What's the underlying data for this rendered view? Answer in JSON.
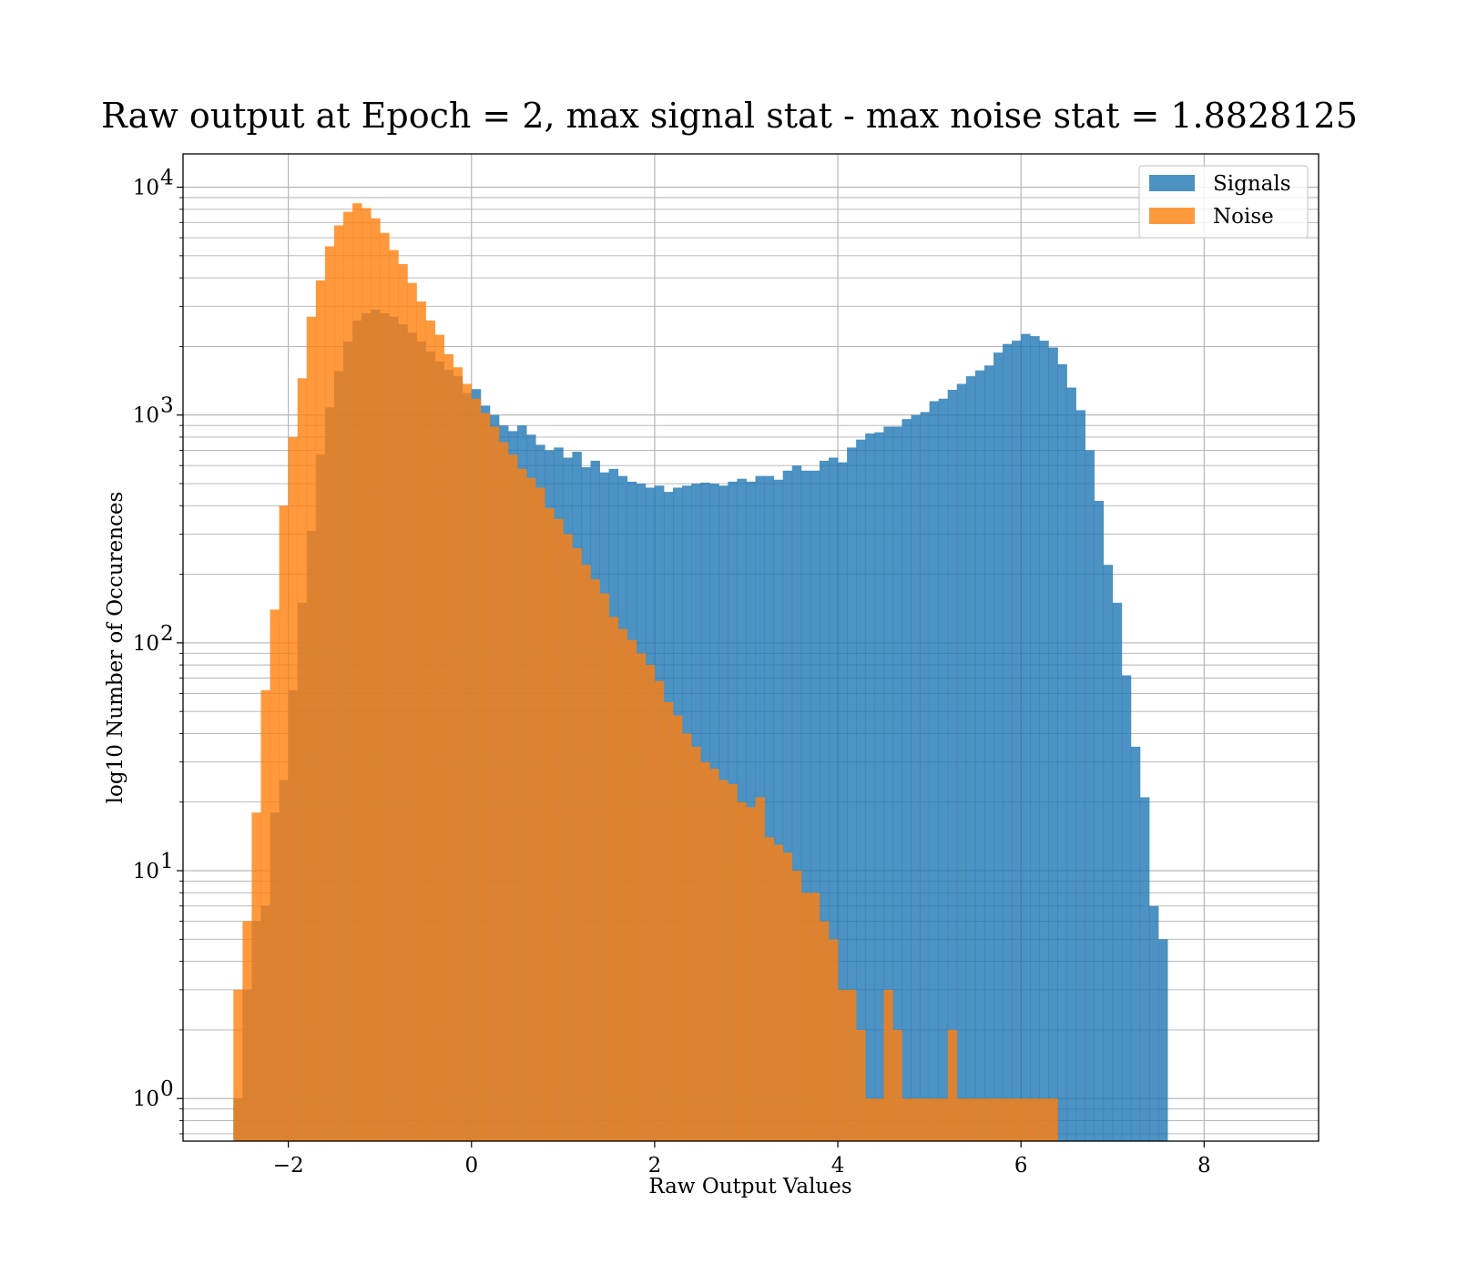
{
  "chart_data": {
    "type": "bar",
    "title": "Raw output at Epoch = 2, max signal stat - max noise stat = 1.8828125",
    "xlabel": "Raw Output Values",
    "ylabel": "log10 Number of Occurences",
    "xlim": [
      -3.15,
      9.25
    ],
    "ylim": [
      0.65,
      14000
    ],
    "yscale": "log",
    "xticks": [
      {
        "value": -2,
        "label": "−2"
      },
      {
        "value": 0,
        "label": "0"
      },
      {
        "value": 2,
        "label": "2"
      },
      {
        "value": 4,
        "label": "4"
      },
      {
        "value": 6,
        "label": "6"
      },
      {
        "value": 8,
        "label": "8"
      }
    ],
    "yticks": [
      {
        "value": 1,
        "base": "10",
        "exp": "0"
      },
      {
        "value": 10,
        "base": "10",
        "exp": "1"
      },
      {
        "value": 100,
        "base": "10",
        "exp": "2"
      },
      {
        "value": 1000,
        "base": "10",
        "exp": "3"
      },
      {
        "value": 10000,
        "base": "10",
        "exp": "4"
      }
    ],
    "grid": true,
    "legend_position": "top-right",
    "bin_width": 0.1,
    "series": [
      {
        "name": "Signals",
        "color": "#1f77b4",
        "opacity": 0.8,
        "bin_start": -2.6,
        "values": [
          1,
          3,
          6,
          7,
          18,
          25,
          62,
          150,
          310,
          670,
          1080,
          1560,
          2100,
          2600,
          2800,
          2900,
          2800,
          2700,
          2500,
          2300,
          2100,
          1900,
          1720,
          1580,
          1480,
          1250,
          1300,
          1100,
          1000,
          900,
          850,
          900,
          820,
          740,
          700,
          720,
          650,
          690,
          590,
          630,
          560,
          580,
          540,
          510,
          500,
          480,
          490,
          460,
          480,
          490,
          500,
          505,
          500,
          490,
          510,
          525,
          510,
          540,
          540,
          520,
          570,
          600,
          570,
          570,
          630,
          650,
          620,
          720,
          780,
          830,
          840,
          890,
          890,
          960,
          1000,
          1030,
          1150,
          1180,
          1290,
          1370,
          1480,
          1570,
          1650,
          1880,
          2050,
          2120,
          2270,
          2220,
          2120,
          1980,
          1670,
          1320,
          1050,
          700,
          420,
          220,
          150,
          72,
          35,
          21,
          7,
          5
        ]
      },
      {
        "name": "Noise",
        "color": "#ff7f0e",
        "opacity": 0.8,
        "bin_start": -2.6,
        "values": [
          3,
          6,
          18,
          62,
          140,
          400,
          800,
          1450,
          2700,
          3900,
          5500,
          6800,
          7800,
          8500,
          8100,
          7300,
          6300,
          5300,
          4600,
          3800,
          3150,
          2600,
          2250,
          1850,
          1620,
          1370,
          1180,
          1020,
          890,
          760,
          670,
          580,
          530,
          480,
          390,
          350,
          300,
          260,
          220,
          190,
          165,
          130,
          115,
          103,
          90,
          80,
          68,
          55,
          48,
          40,
          35,
          30,
          28,
          25,
          24,
          20,
          19,
          21,
          14,
          13,
          12,
          10,
          8,
          8,
          6,
          5,
          3,
          3,
          2,
          1,
          1,
          3,
          2,
          1,
          1,
          1,
          1,
          1,
          2,
          1,
          1,
          1,
          1,
          1,
          1,
          1,
          1,
          1,
          1,
          1
        ]
      }
    ]
  }
}
